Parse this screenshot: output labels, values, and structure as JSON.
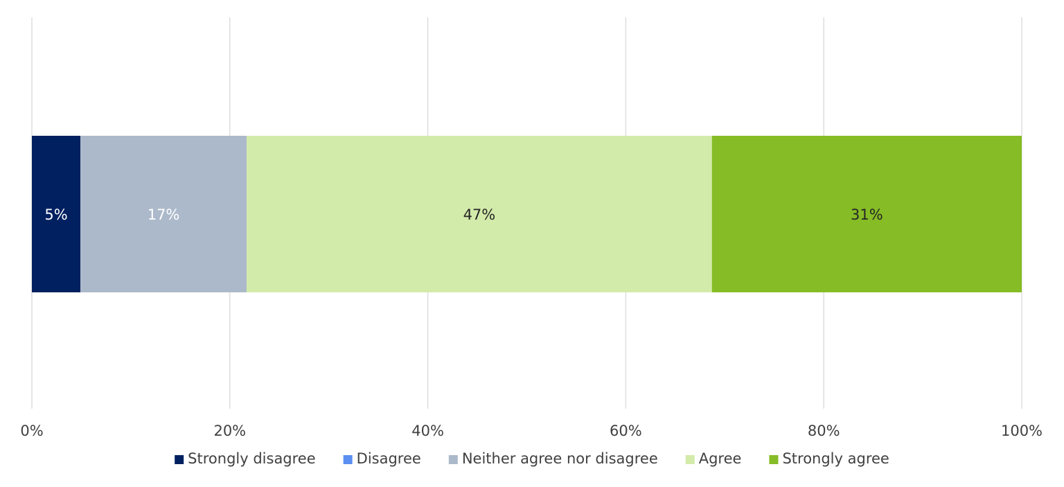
{
  "chart_data": {
    "type": "bar",
    "orientation": "horizontal",
    "stacked": true,
    "normalized": true,
    "title": "",
    "xlabel": "",
    "ylabel": "",
    "categories": [
      ""
    ],
    "xlim": [
      0,
      100
    ],
    "x_ticks": [
      0,
      20,
      40,
      60,
      80,
      100
    ],
    "x_tick_labels": [
      "0%",
      "20%",
      "40%",
      "60%",
      "80%",
      "100%"
    ],
    "grid": "vertical",
    "legend_position": "bottom",
    "series": [
      {
        "name": "Strongly disagree",
        "values": [
          4.9
        ],
        "data_labels": [
          "5%"
        ],
        "color": "#002060",
        "label_color": "#ffffff"
      },
      {
        "name": "Disagree",
        "values": [
          0
        ],
        "data_labels": [
          ""
        ],
        "color": "#5b8ff0",
        "label_color": "#ffffff"
      },
      {
        "name": "Neither agree nor disagree",
        "values": [
          16.8
        ],
        "data_labels": [
          "17%"
        ],
        "color": "#acb9ca",
        "label_color": "#ffffff"
      },
      {
        "name": "Agree",
        "values": [
          47.0
        ],
        "data_labels": [
          "47%"
        ],
        "color": "#d3ebaa",
        "label_color": "#262626"
      },
      {
        "name": "Strongly agree",
        "values": [
          31.3
        ],
        "data_labels": [
          "31%"
        ],
        "color": "#86bc25",
        "label_color": "#262626"
      }
    ]
  }
}
